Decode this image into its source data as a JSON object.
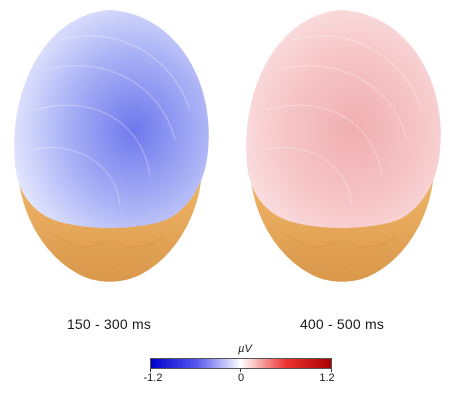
{
  "panels": [
    {
      "caption": "150 - 300 ms",
      "map_color_base": "#aab2f6",
      "map_color_light": "#e4e7fd",
      "map_color_dark": "#6e78ec"
    },
    {
      "caption": "400 - 500 ms",
      "map_color_base": "#f6c6c8",
      "map_color_light": "#fbe3e4",
      "map_color_dark": "#f0aeb2"
    }
  ],
  "colorbar": {
    "unit": "µV",
    "min_label": "-1.2",
    "mid_label": "0",
    "max_label": "1.2",
    "min_value": -1.2,
    "max_value": 1.2,
    "colors": [
      "#0000cc",
      "#5555ee",
      "#ffffff",
      "#ee3333",
      "#aa0000"
    ]
  },
  "skin_color": "#f2b86a",
  "skin_shadow": "#d9974a"
}
